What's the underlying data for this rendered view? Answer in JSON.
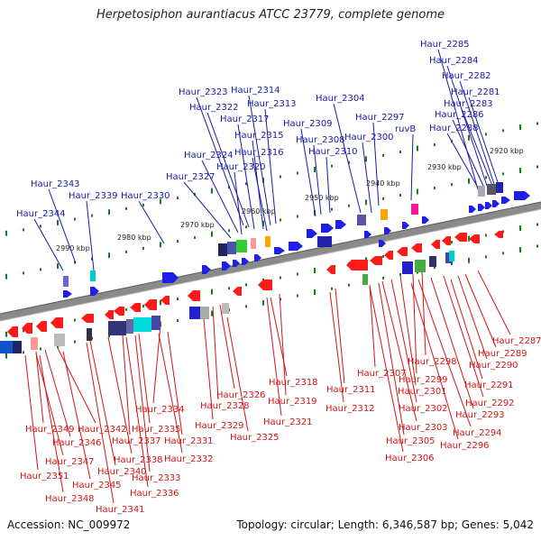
{
  "title": "Herpetosiphon aurantiacus ATCC 23779, complete genome",
  "footer": {
    "accession": "Accession: NC_009972",
    "topology": "Topology: circular; Length: 6,346,587 bp; Genes: 5,042"
  },
  "colors": {
    "forward_label": "#1a1aa8",
    "reverse_label": "#d41414",
    "forward_gene": "#1f1fe6",
    "reverse_gene": "#ff1a1a",
    "backbone": "#8a8a8a",
    "tick": "#1e7a1e"
  },
  "kbp_ticks": [
    "2920 kbp",
    "2930 kbp",
    "2940 kbp",
    "2950 kbp",
    "2960 kbp",
    "2970 kbp",
    "2980 kbp",
    "2990 kbp"
  ],
  "forward_genes": [
    "Haur_2285",
    "Haur_2284",
    "Haur_2282",
    "Haur_2281",
    "Haur_2283",
    "Haur_2286",
    "Haur_2288",
    "Haur_2314",
    "Haur_2313",
    "Haur_2323",
    "Haur_2322",
    "Haur_2317",
    "Haur_2315",
    "Haur_2316",
    "Haur_2324",
    "Haur_2320",
    "Haur_2327",
    "Haur_2309",
    "Haur_2308",
    "Haur_2310",
    "Haur_2304",
    "Haur_2297",
    "ruvB",
    "Haur_2300",
    "Haur_2343",
    "Haur_2339",
    "Haur_2330",
    "Haur_2344"
  ],
  "reverse_genes": [
    "Haur_2287",
    "Haur_2289",
    "Haur_2290",
    "Haur_2298",
    "Haur_2291",
    "Haur_2299",
    "Haur_2307",
    "Haur_2301",
    "Haur_2292",
    "Haur_2318",
    "Haur_2311",
    "Haur_2326",
    "Haur_2319",
    "Haur_2293",
    "Haur_2302",
    "Haur_2328",
    "Haur_2312",
    "Haur_2334",
    "Haur_2321",
    "Haur_2303",
    "Haur_2294",
    "Haur_2329",
    "Haur_2349",
    "Haur_2342",
    "Haur_2335",
    "Haur_2325",
    "Haur_2305",
    "Haur_2296",
    "Haur_2346",
    "Haur_2337",
    "Haur_2331",
    "Haur_2338",
    "Haur_2347",
    "Haur_2332",
    "Haur_2306",
    "Haur_2340",
    "Haur_2351",
    "Haur_2345",
    "Haur_2333",
    "Haur_2336",
    "Haur_2348",
    "Haur_2341"
  ]
}
